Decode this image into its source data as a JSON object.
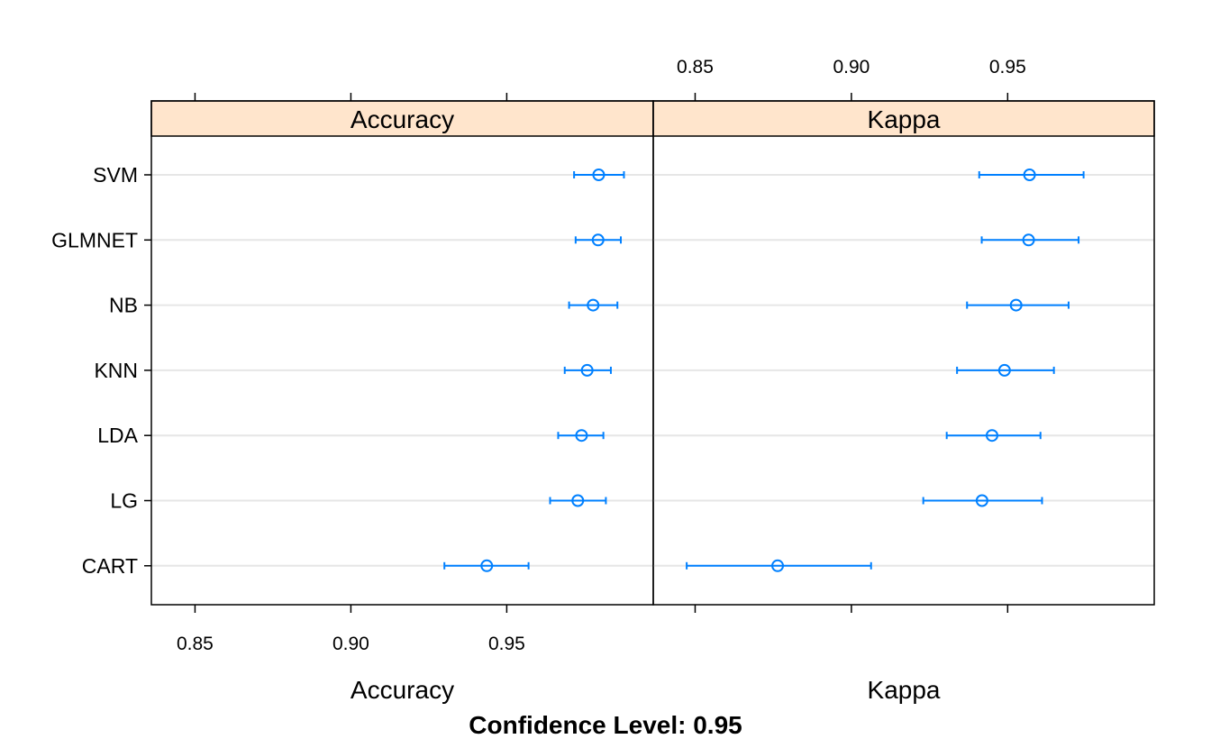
{
  "chart_data": {
    "type": "dotplot-errorbar",
    "footer_title": "Confidence Level: 0.95",
    "categories": [
      "SVM",
      "GLMNET",
      "NB",
      "KNN",
      "LDA",
      "LG",
      "CART"
    ],
    "panels": [
      {
        "name": "Accuracy",
        "strip_label": "Accuracy",
        "xlabel": "Accuracy",
        "xlim": [
          0.836,
          0.997
        ],
        "ticks": [
          0.85,
          0.9,
          0.95
        ],
        "tick_labels": [
          "0.85",
          "0.90",
          "0.95"
        ],
        "tick_side": "bottom",
        "estimates": [
          0.9795,
          0.9793,
          0.9777,
          0.9758,
          0.974,
          0.9728,
          0.9436
        ],
        "lower": [
          0.9716,
          0.9721,
          0.97,
          0.9686,
          0.9665,
          0.9639,
          0.93
        ],
        "upper": [
          0.9876,
          0.9866,
          0.9855,
          0.9834,
          0.981,
          0.9818,
          0.957
        ]
      },
      {
        "name": "Kappa",
        "strip_label": "Kappa",
        "xlabel": "Kappa",
        "xlim": [
          0.8366,
          0.9969
        ],
        "ticks": [
          0.85,
          0.9,
          0.95
        ],
        "tick_labels": [
          "0.85",
          "0.90",
          "0.95"
        ],
        "tick_side": "top",
        "estimates": [
          0.957,
          0.9567,
          0.9527,
          0.949,
          0.945,
          0.9418,
          0.8764
        ],
        "lower": [
          0.9409,
          0.9417,
          0.937,
          0.9338,
          0.9305,
          0.923,
          0.8473
        ],
        "upper": [
          0.9743,
          0.9727,
          0.9695,
          0.9648,
          0.9605,
          0.961,
          0.9063
        ]
      }
    ],
    "colors": {
      "series": "#0080ff",
      "strip_bg": "#ffe5cc",
      "gridline": "#e6e6e6",
      "frame": "#000000"
    }
  }
}
